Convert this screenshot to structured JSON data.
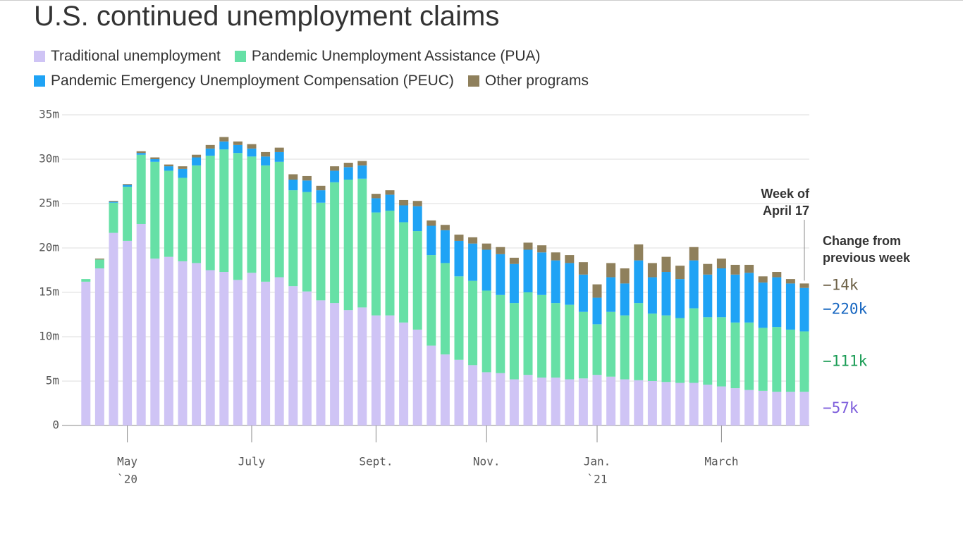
{
  "chart_data": {
    "type": "stacked_bar",
    "title": "U.S. continued unemployment claims",
    "categories": [
      null,
      null,
      null,
      "May",
      null,
      null,
      null,
      null,
      null,
      null,
      null,
      null,
      "July",
      null,
      null,
      null,
      null,
      null,
      null,
      null,
      null,
      "Sept.",
      null,
      null,
      null,
      null,
      null,
      null,
      null,
      "Nov.",
      null,
      null,
      null,
      null,
      null,
      null,
      null,
      "Jan.",
      null,
      null,
      null,
      null,
      null,
      null,
      null,
      null,
      "March",
      null,
      null,
      null,
      null,
      null,
      null
    ],
    "category_years": [
      null,
      null,
      null,
      "`20",
      null,
      null,
      null,
      null,
      null,
      null,
      null,
      null,
      null,
      null,
      null,
      null,
      null,
      null,
      null,
      null,
      null,
      null,
      null,
      null,
      null,
      null,
      null,
      null,
      null,
      null,
      null,
      null,
      null,
      null,
      null,
      null,
      null,
      "`21",
      null,
      null,
      null,
      null,
      null,
      null,
      null,
      null,
      null,
      null,
      null,
      null,
      null,
      null,
      null
    ],
    "series": [
      {
        "name": "Traditional unemployment",
        "color": "#cfc4f5",
        "change_label": "−57k",
        "change_color": "#7c5cdb",
        "values": [
          16.2,
          17.7,
          21.7,
          20.8,
          22.7,
          18.8,
          19.0,
          18.5,
          18.3,
          17.5,
          17.3,
          16.4,
          17.2,
          16.2,
          16.7,
          15.7,
          15.1,
          14.1,
          13.8,
          13.0,
          13.3,
          12.4,
          12.4,
          11.6,
          10.8,
          9.0,
          8.0,
          7.4,
          6.8,
          6.0,
          5.9,
          5.2,
          5.7,
          5.4,
          5.4,
          5.2,
          5.3,
          5.7,
          5.5,
          5.2,
          5.1,
          5.0,
          4.9,
          4.8,
          4.8,
          4.6,
          4.4,
          4.2,
          4.0,
          3.9,
          3.8,
          3.8,
          3.8
        ]
      },
      {
        "name": "Pandemic Unemployment Assistance (PUA)",
        "color": "#66e0a6",
        "change_label": "−111k",
        "change_color": "#1a9c55",
        "values": [
          0.3,
          1.0,
          3.4,
          6.1,
          7.8,
          10.9,
          9.7,
          9.4,
          11.0,
          12.9,
          13.8,
          14.3,
          13.1,
          13.1,
          13.0,
          10.8,
          11.2,
          11.0,
          13.6,
          14.7,
          14.5,
          11.6,
          11.8,
          11.3,
          11.1,
          10.2,
          10.3,
          9.4,
          9.5,
          9.2,
          8.8,
          8.6,
          9.3,
          9.3,
          8.4,
          8.4,
          7.5,
          5.7,
          7.3,
          7.2,
          8.7,
          7.6,
          7.5,
          7.3,
          8.4,
          7.6,
          7.8,
          7.4,
          7.6,
          7.1,
          7.3,
          7.0,
          6.8
        ]
      },
      {
        "name": "Pandemic Emergency Unemployment Compensation (PEUC)",
        "color": "#1fa3f5",
        "change_label": "−220k",
        "change_color": "#1565c0",
        "values": [
          0,
          0,
          0.1,
          0.2,
          0.2,
          0.3,
          0.5,
          1.0,
          0.9,
          0.8,
          0.9,
          0.9,
          0.9,
          1.0,
          1.1,
          1.2,
          1.3,
          1.4,
          1.3,
          1.4,
          1.5,
          1.6,
          1.8,
          1.9,
          2.8,
          3.3,
          3.7,
          4.0,
          4.2,
          4.6,
          4.6,
          4.4,
          4.8,
          4.8,
          4.8,
          4.7,
          4.2,
          3.0,
          3.9,
          3.6,
          4.8,
          4.1,
          4.9,
          4.4,
          5.4,
          4.8,
          5.5,
          5.4,
          5.6,
          5.1,
          5.6,
          5.2,
          4.9
        ]
      },
      {
        "name": "Other programs",
        "color": "#8f805c",
        "change_label": "−14k",
        "change_color": "#6e6248",
        "values": [
          0,
          0.1,
          0.1,
          0.1,
          0.2,
          0.2,
          0.2,
          0.3,
          0.3,
          0.4,
          0.5,
          0.4,
          0.5,
          0.5,
          0.5,
          0.6,
          0.5,
          0.5,
          0.5,
          0.5,
          0.5,
          0.5,
          0.5,
          0.6,
          0.6,
          0.6,
          0.6,
          0.7,
          0.7,
          0.7,
          0.8,
          0.7,
          0.8,
          0.8,
          0.9,
          0.9,
          1.4,
          1.5,
          1.6,
          1.7,
          1.8,
          1.6,
          1.7,
          1.5,
          1.5,
          1.2,
          1.1,
          1.1,
          0.9,
          0.7,
          0.6,
          0.5,
          0.5
        ]
      }
    ],
    "ylim": [
      0,
      35
    ],
    "yticks": [
      0,
      {
        "value": 5,
        "label": "5m"
      },
      {
        "value": 10,
        "label": "10m"
      },
      {
        "value": 15,
        "label": "15m"
      },
      {
        "value": 20,
        "label": "20m"
      },
      {
        "value": 25,
        "label": "25m"
      },
      {
        "value": 30,
        "label": "30m"
      },
      {
        "value": 35,
        "label": "35m"
      }
    ],
    "grid": true,
    "week_note": [
      "Week of",
      "April 17"
    ],
    "change_title": [
      "Change from",
      "previous week"
    ]
  }
}
